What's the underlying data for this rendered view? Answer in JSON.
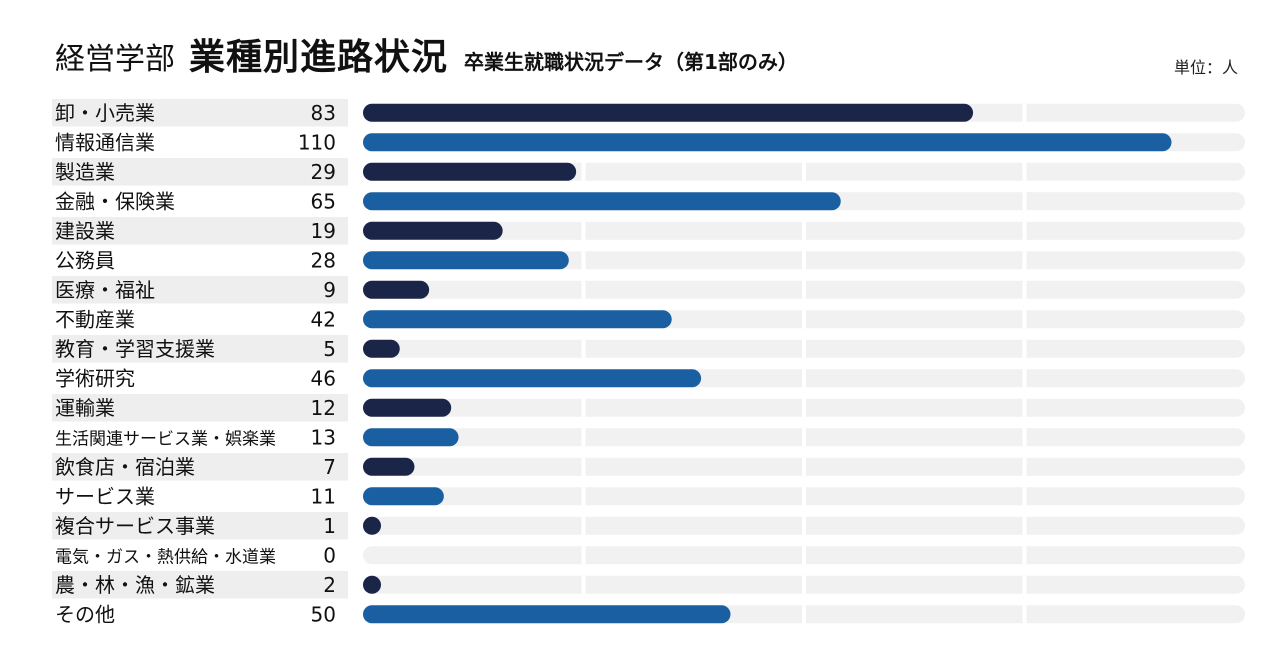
{
  "header": {
    "faculty": "経営学部",
    "title": "業種別進路状況",
    "subtitle": "卒業生就職状況データ（第1部のみ）",
    "unit": "単位：人"
  },
  "colors": {
    "dark": "#1a2548",
    "blue": "#1b5fa3",
    "track": "#f1f1f1",
    "labelBg": "#eeeeee"
  },
  "chart_data": {
    "type": "bar",
    "orientation": "horizontal",
    "categories": [
      "卸・小売業",
      "情報通信業",
      "製造業",
      "金融・保険業",
      "建設業",
      "公務員",
      "医療・福祉",
      "不動産業",
      "教育・学習支援業",
      "学術研究",
      "運輸業",
      "生活関連サービス業・娯楽業",
      "飲食店・宿泊業",
      "サービス業",
      "複合サービス事業",
      "電気・ガス・熱供給・水道業",
      "農・林・漁・鉱業",
      "その他"
    ],
    "values": [
      83,
      110,
      29,
      65,
      19,
      28,
      9,
      42,
      5,
      46,
      12,
      13,
      7,
      11,
      1,
      0,
      2,
      50
    ],
    "xlim": [
      0,
      120
    ],
    "grid": true,
    "legend": "none"
  }
}
